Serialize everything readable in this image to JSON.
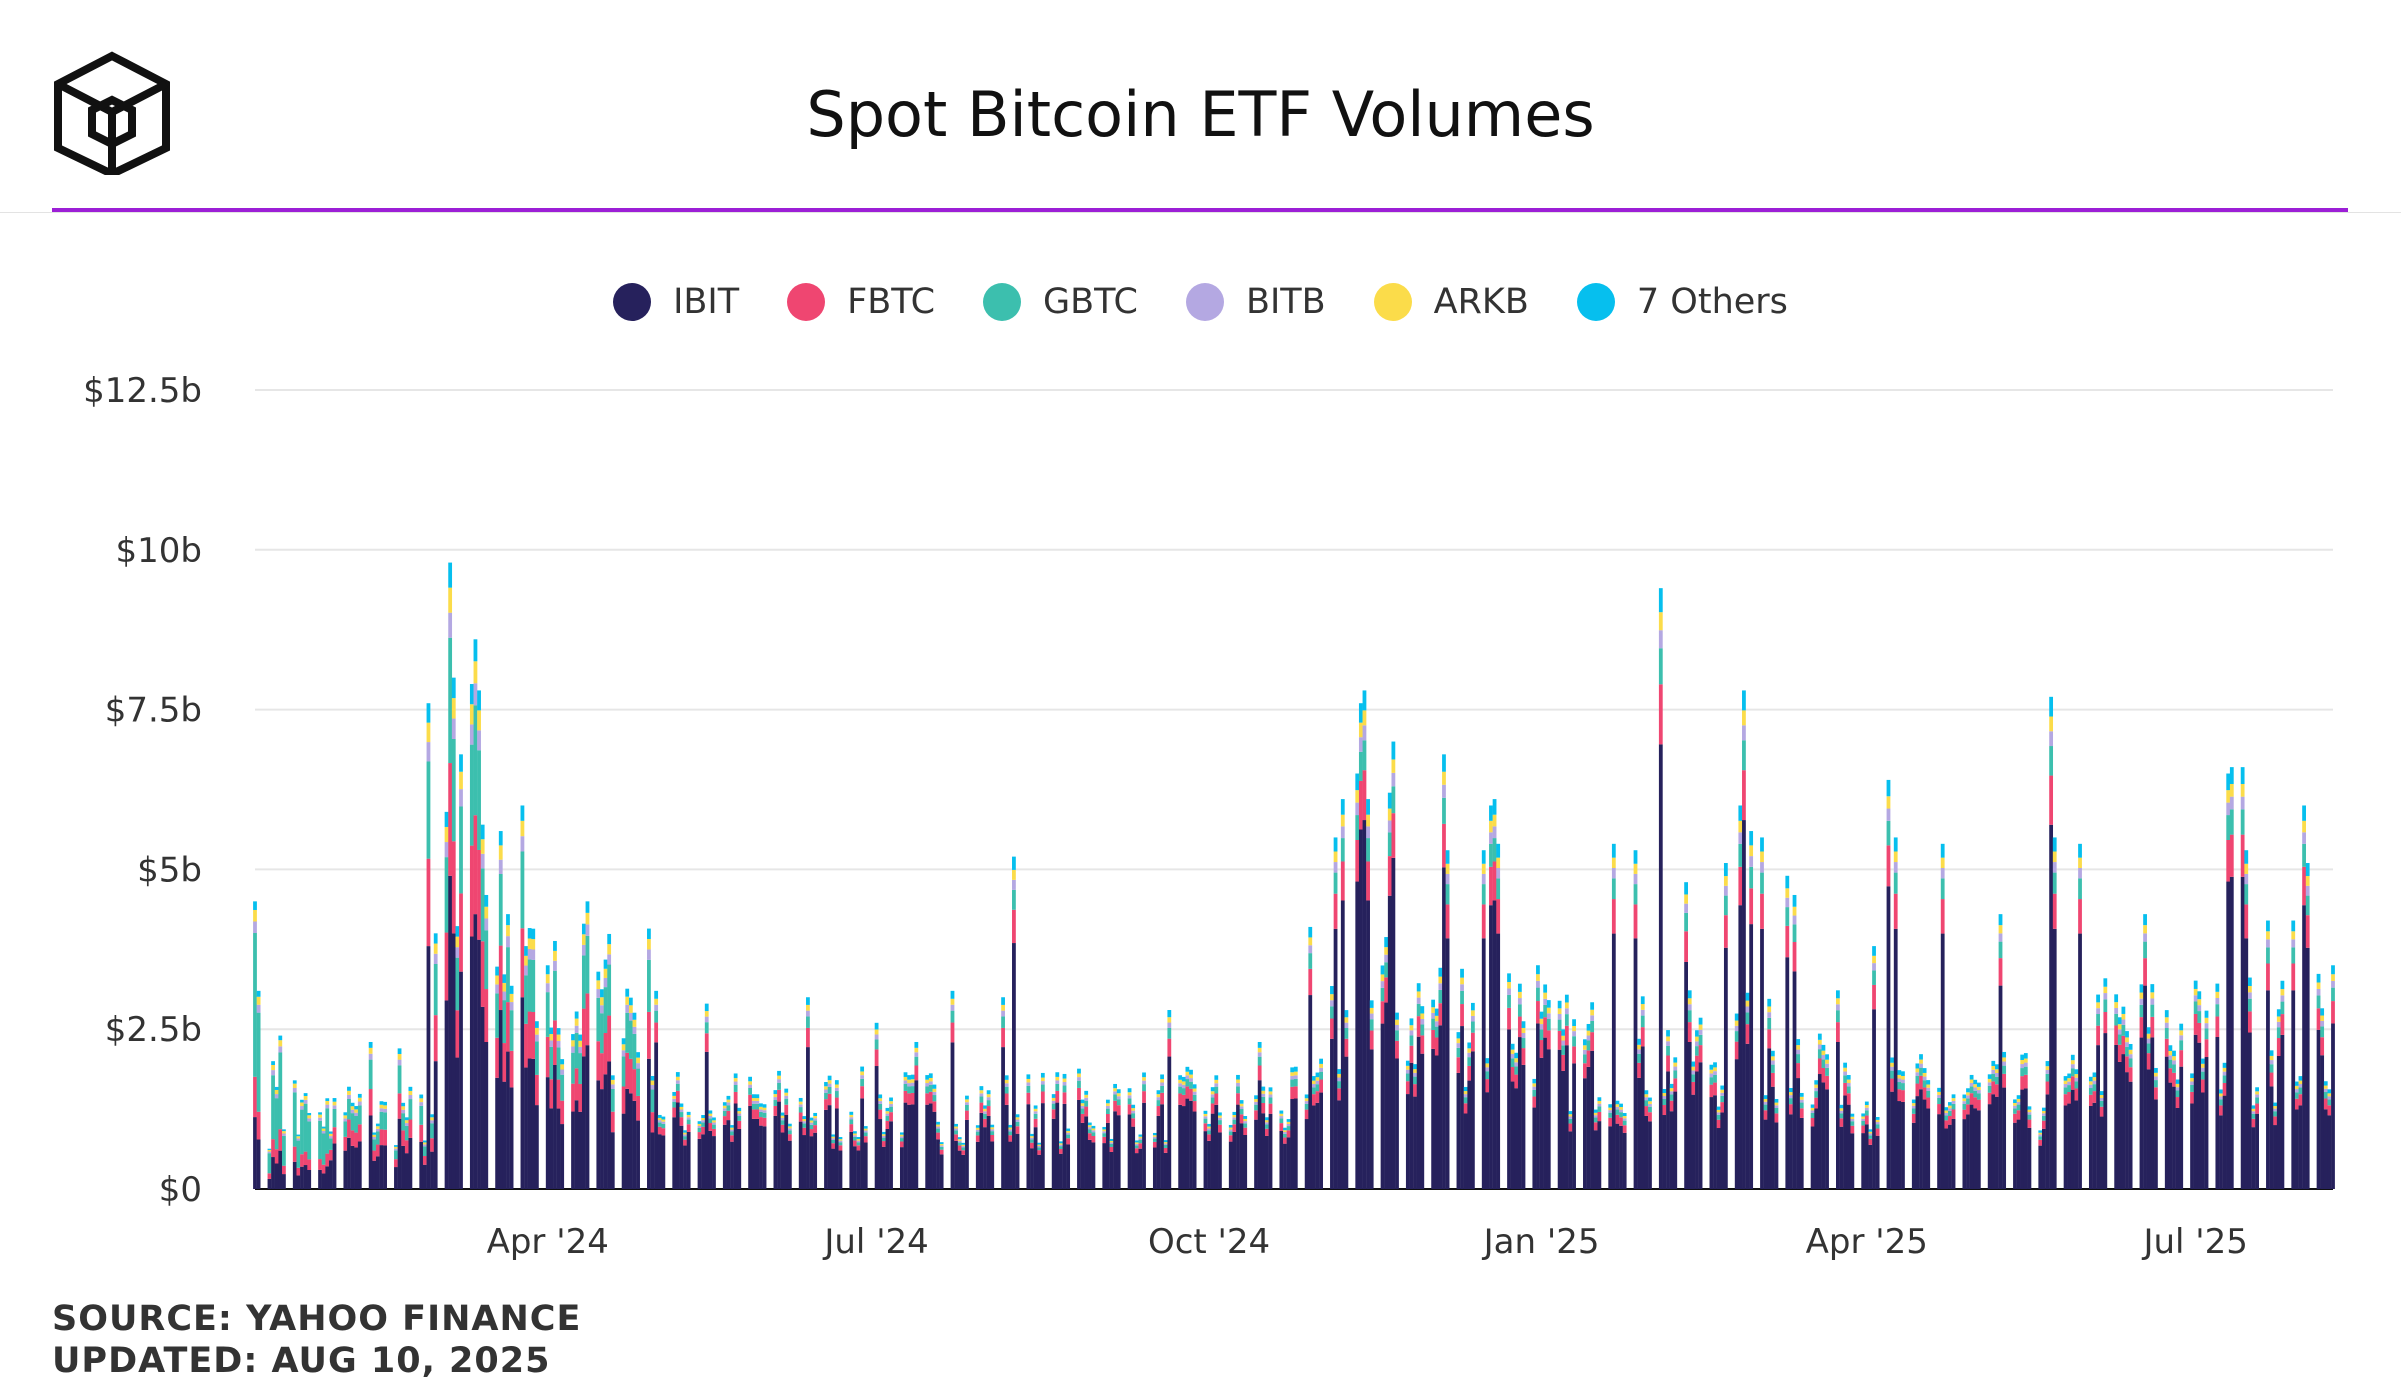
{
  "header": {
    "title": "Spot Bitcoin ETF Volumes",
    "logo_icon": "cube-logo-icon"
  },
  "colors": {
    "accent": "#9c1fd6",
    "IBIT": "#26215c",
    "FBTC": "#ef4671",
    "GBTC": "#3cbfae",
    "BITB": "#b4a8e2",
    "ARKB": "#fbdc4a",
    "others": "#06bfee"
  },
  "footer": {
    "source": "SOURCE: YAHOO FINANCE",
    "updated": "UPDATED: AUG 10, 2025"
  },
  "chart_data": {
    "type": "bar",
    "stacked": true,
    "grid": true,
    "legend_position": "top-center",
    "x_start": "2024-01-11",
    "x_end": "2025-08-08",
    "x_ticks": [
      {
        "date": "2024-04-01",
        "label": "Apr '24"
      },
      {
        "date": "2024-07-01",
        "label": "Jul '24"
      },
      {
        "date": "2024-10-01",
        "label": "Oct '24"
      },
      {
        "date": "2025-01-01",
        "label": "Jan '25"
      },
      {
        "date": "2025-04-01",
        "label": "Apr '25"
      },
      {
        "date": "2025-07-01",
        "label": "Jul '25"
      }
    ],
    "ylim": [
      0,
      12.5
    ],
    "y_unit": "billion USD",
    "y_ticks": [
      {
        "value": 0,
        "label": "$0"
      },
      {
        "value": 2.5,
        "label": "$2.5b"
      },
      {
        "value": 5,
        "label": "$5b"
      },
      {
        "value": 7.5,
        "label": "$7.5b"
      },
      {
        "value": 10,
        "label": "$10b"
      },
      {
        "value": 12.5,
        "label": "$12.5b"
      }
    ],
    "series": [
      {
        "name": "IBIT",
        "color": "#26215c"
      },
      {
        "name": "FBTC",
        "color": "#ef4671"
      },
      {
        "name": "GBTC",
        "color": "#3cbfae"
      },
      {
        "name": "BITB",
        "color": "#b4a8e2"
      },
      {
        "name": "ARKB",
        "color": "#fbdc4a"
      },
      {
        "name": "7 Others",
        "color": "#06bfee"
      }
    ],
    "totals_by_date": [
      [
        "2024-01-11",
        4.5
      ],
      [
        "2024-01-12",
        3.1
      ],
      [
        "2024-01-16",
        2.0
      ],
      [
        "2024-01-18",
        2.4
      ],
      [
        "2024-01-22",
        1.7
      ],
      [
        "2024-01-25",
        1.5
      ],
      [
        "2024-01-29",
        1.2
      ],
      [
        "2024-02-01",
        0.9
      ],
      [
        "2024-02-06",
        1.6
      ],
      [
        "2024-02-12",
        2.3
      ],
      [
        "2024-02-20",
        2.2
      ],
      [
        "2024-02-28",
        7.6
      ],
      [
        "2024-03-01",
        4.0
      ],
      [
        "2024-03-04",
        5.9
      ],
      [
        "2024-03-05",
        9.8
      ],
      [
        "2024-03-06",
        8.0
      ],
      [
        "2024-03-08",
        6.8
      ],
      [
        "2024-03-11",
        7.9
      ],
      [
        "2024-03-12",
        8.6
      ],
      [
        "2024-03-13",
        7.8
      ],
      [
        "2024-03-14",
        5.7
      ],
      [
        "2024-03-15",
        4.6
      ],
      [
        "2024-03-19",
        5.6
      ],
      [
        "2024-03-21",
        4.3
      ],
      [
        "2024-03-25",
        6.0
      ],
      [
        "2024-03-26",
        3.8
      ],
      [
        "2024-04-01",
        3.5
      ],
      [
        "2024-04-12",
        4.5
      ],
      [
        "2024-04-15",
        3.4
      ],
      [
        "2024-05-01",
        3.1
      ],
      [
        "2024-05-15",
        2.9
      ],
      [
        "2024-06-12",
        3.0
      ],
      [
        "2024-07-01",
        2.6
      ],
      [
        "2024-07-12",
        2.3
      ],
      [
        "2024-07-22",
        3.1
      ],
      [
        "2024-08-05",
        3.0
      ],
      [
        "2024-08-08",
        5.2
      ],
      [
        "2024-09-20",
        2.8
      ],
      [
        "2024-10-15",
        2.3
      ],
      [
        "2024-10-29",
        4.1
      ],
      [
        "2024-11-05",
        5.5
      ],
      [
        "2024-11-07",
        6.1
      ],
      [
        "2024-11-11",
        6.5
      ],
      [
        "2024-11-12",
        7.6
      ],
      [
        "2024-11-13",
        7.8
      ],
      [
        "2024-11-14",
        6.1
      ],
      [
        "2024-11-20",
        6.2
      ],
      [
        "2024-11-21",
        7.0
      ],
      [
        "2024-12-05",
        6.8
      ],
      [
        "2024-12-06",
        5.3
      ],
      [
        "2024-12-16",
        5.3
      ],
      [
        "2024-12-18",
        6.0
      ],
      [
        "2024-12-19",
        6.1
      ],
      [
        "2024-12-20",
        5.4
      ],
      [
        "2025-01-02",
        3.2
      ],
      [
        "2025-01-21",
        5.4
      ],
      [
        "2025-01-27",
        5.3
      ],
      [
        "2025-02-03",
        9.4
      ],
      [
        "2025-02-10",
        4.8
      ],
      [
        "2025-02-21",
        5.1
      ],
      [
        "2025-02-25",
        6.0
      ],
      [
        "2025-02-26",
        7.8
      ],
      [
        "2025-02-28",
        5.6
      ],
      [
        "2025-03-03",
        5.5
      ],
      [
        "2025-03-10",
        4.9
      ],
      [
        "2025-03-12",
        4.6
      ],
      [
        "2025-04-03",
        3.8
      ],
      [
        "2025-04-07",
        6.4
      ],
      [
        "2025-04-09",
        5.5
      ],
      [
        "2025-04-22",
        5.4
      ],
      [
        "2025-05-08",
        4.3
      ],
      [
        "2025-05-22",
        7.7
      ],
      [
        "2025-05-23",
        5.5
      ],
      [
        "2025-05-30",
        5.4
      ],
      [
        "2025-06-17",
        4.3
      ],
      [
        "2025-07-10",
        6.5
      ],
      [
        "2025-07-11",
        6.6
      ],
      [
        "2025-07-14",
        6.6
      ],
      [
        "2025-07-15",
        5.3
      ],
      [
        "2025-07-21",
        4.2
      ],
      [
        "2025-07-28",
        4.2
      ],
      [
        "2025-07-31",
        6.0
      ],
      [
        "2025-08-01",
        5.1
      ],
      [
        "2025-08-08",
        3.5
      ]
    ]
  }
}
